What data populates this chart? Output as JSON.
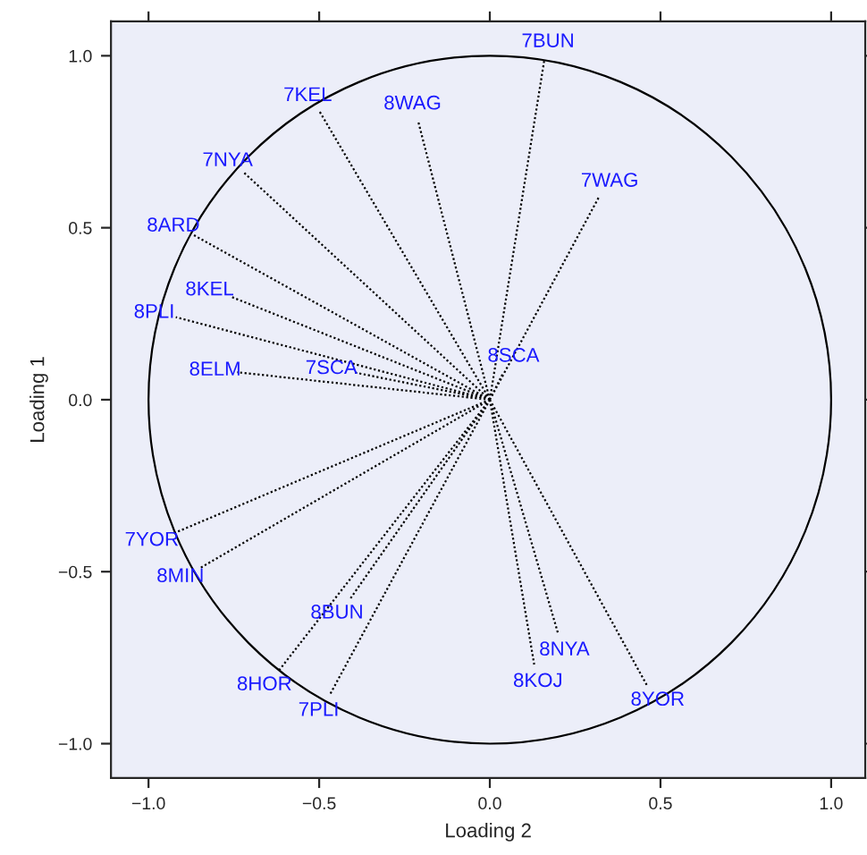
{
  "chart_data": {
    "type": "line",
    "xlabel": "Loading 2",
    "ylabel": "Loading 1",
    "xlim": [
      -1.11,
      1.1
    ],
    "ylim": [
      -1.1,
      1.1
    ],
    "xticks": [
      {
        "value": -1,
        "label": "−1.0"
      },
      {
        "value": -0.5,
        "label": "−0.5"
      },
      {
        "value": 0,
        "label": "0.0"
      },
      {
        "value": 0.5,
        "label": "0.5"
      },
      {
        "value": 1,
        "label": "1.0"
      }
    ],
    "yticks": [
      {
        "value": -1,
        "label": "−1.0"
      },
      {
        "value": -0.5,
        "label": "−0.5"
      },
      {
        "value": 0,
        "label": "0.0"
      },
      {
        "value": 0.5,
        "label": "0.5"
      },
      {
        "value": 1,
        "label": "1.0"
      }
    ],
    "grid": false,
    "legend": false,
    "line_style": "dotted",
    "series": [
      {
        "color": "#000000",
        "x": [
          0,
          0.16,
          null,
          0,
          -0.5,
          null,
          0,
          -0.21,
          null,
          0,
          -0.72,
          null,
          0,
          0.32,
          null,
          0,
          -0.87,
          null,
          0,
          -0.76,
          null,
          0,
          -0.92,
          null,
          0,
          -0.74,
          null,
          0,
          -0.4,
          null,
          0,
          0.04,
          null,
          0,
          -0.93,
          null,
          0,
          -0.85,
          null,
          0,
          -0.41,
          null,
          0,
          0.2,
          null,
          0,
          0.13,
          null,
          0,
          -0.62,
          null,
          0,
          -0.47,
          null,
          0,
          0.46
        ],
        "values": [
          0,
          0.99,
          null,
          0,
          0.84,
          null,
          0,
          0.81,
          null,
          0,
          0.66,
          null,
          0,
          0.59,
          null,
          0,
          0.48,
          null,
          0,
          0.3,
          null,
          0,
          0.24,
          null,
          0,
          0.08,
          null,
          0,
          0.08,
          null,
          0,
          0.08,
          null,
          0,
          -0.39,
          null,
          0,
          -0.49,
          null,
          0,
          -0.58,
          null,
          0,
          -0.68,
          null,
          0,
          -0.77,
          null,
          0,
          -0.79,
          null,
          0,
          -0.86,
          null,
          0,
          -0.83
        ]
      }
    ],
    "annotations": [
      {
        "text": "7BUN",
        "x": 0.16,
        "y": 0.99
      },
      {
        "text": "7KEL",
        "x": -0.5,
        "y": 0.84
      },
      {
        "text": "8WAG",
        "x": -0.21,
        "y": 0.81
      },
      {
        "text": "7NYA",
        "x": -0.72,
        "y": 0.66
      },
      {
        "text": "7WAG",
        "x": 0.32,
        "y": 0.59
      },
      {
        "text": "8ARD",
        "x": -0.87,
        "y": 0.48
      },
      {
        "text": "8KEL",
        "x": -0.76,
        "y": 0.3
      },
      {
        "text": "8PLI",
        "x": -0.92,
        "y": 0.24
      },
      {
        "text": "8ELM",
        "x": -0.74,
        "y": 0.08
      },
      {
        "text": "7SCA",
        "x": -0.4,
        "y": 0.08
      },
      {
        "text": "8SCA",
        "x": 0.04,
        "y": 0.08
      },
      {
        "text": "7YOR",
        "x": -0.93,
        "y": -0.39
      },
      {
        "text": "8MIN",
        "x": -0.85,
        "y": -0.49
      },
      {
        "text": "8BUN",
        "x": -0.41,
        "y": -0.58
      },
      {
        "text": "8NYA",
        "x": 0.2,
        "y": -0.68
      },
      {
        "text": "8KOJ",
        "x": 0.13,
        "y": -0.77
      },
      {
        "text": "8HOR",
        "x": -0.62,
        "y": -0.79
      },
      {
        "text": "7PLI",
        "x": -0.47,
        "y": -0.86
      },
      {
        "text": "8YOR",
        "x": 0.46,
        "y": -0.83
      }
    ]
  }
}
